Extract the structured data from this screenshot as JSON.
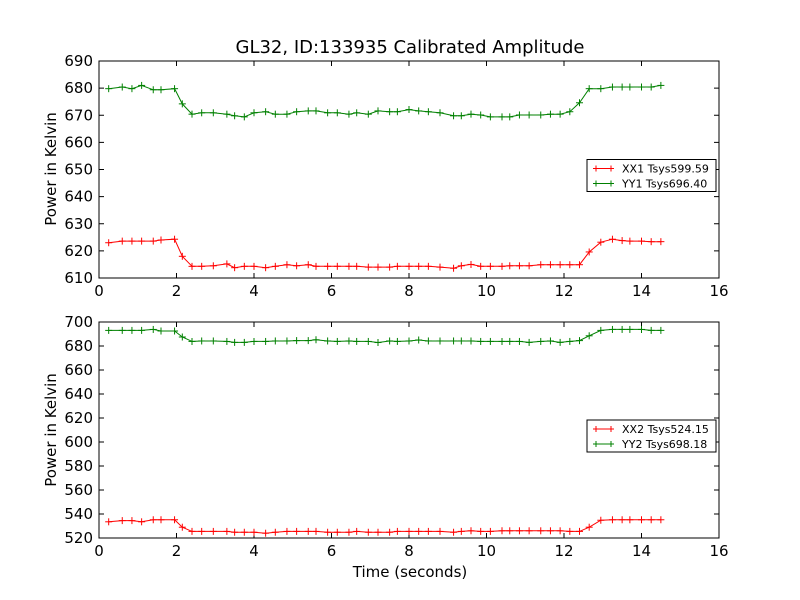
{
  "chart_data": {
    "title": "GL32, ID:133935 Calibrated Amplitude",
    "xlabel": "Time (seconds)",
    "panels": [
      {
        "type": "line",
        "ylabel": "Power in Kelvin",
        "xlim": [
          0,
          16
        ],
        "ylim": [
          610,
          690
        ],
        "xticks": [
          0,
          2,
          4,
          6,
          8,
          10,
          12,
          14,
          16
        ],
        "yticks": [
          610,
          620,
          630,
          640,
          650,
          660,
          670,
          680,
          690
        ],
        "legend_position": "center-right",
        "series": [
          {
            "name": "XX1 Tsys599.59",
            "color": "#ff0000",
            "marker": "plus",
            "x": [
              0.25,
              0.6,
              0.85,
              1.1,
              1.4,
              1.6,
              1.95,
              2.15,
              2.4,
              2.65,
              2.95,
              3.3,
              3.5,
              3.75,
              4.0,
              4.3,
              4.55,
              4.85,
              5.1,
              5.4,
              5.6,
              5.9,
              6.15,
              6.45,
              6.65,
              6.95,
              7.2,
              7.5,
              7.7,
              8.0,
              8.25,
              8.5,
              8.8,
              9.15,
              9.35,
              9.6,
              9.85,
              10.1,
              10.4,
              10.6,
              10.85,
              11.1,
              11.4,
              11.65,
              11.9,
              12.15,
              12.4,
              12.65,
              12.95,
              13.25,
              13.5,
              13.7,
              14.0,
              14.25,
              14.5
            ],
            "y": [
              623,
              623.6,
              623.6,
              623.6,
              623.6,
              624.0,
              624.3,
              618.0,
              614.3,
              614.3,
              614.5,
              615.2,
              613.8,
              614.3,
              614.3,
              613.8,
              614.3,
              614.9,
              614.5,
              614.9,
              614.3,
              614.3,
              614.3,
              614.3,
              614.3,
              614.0,
              614.0,
              614.0,
              614.3,
              614.3,
              614.3,
              614.3,
              614.0,
              613.6,
              614.5,
              615.0,
              614.3,
              614.3,
              614.3,
              614.5,
              614.5,
              614.5,
              614.9,
              614.9,
              614.9,
              614.9,
              614.9,
              619.6,
              623.2,
              624.3,
              623.8,
              623.6,
              623.6,
              623.4,
              623.4
            ]
          },
          {
            "name": "YY1 Tsys696.40",
            "color": "#008000",
            "marker": "plus",
            "x": [
              0.25,
              0.6,
              0.85,
              1.1,
              1.4,
              1.6,
              1.95,
              2.15,
              2.4,
              2.65,
              2.95,
              3.3,
              3.5,
              3.75,
              4.0,
              4.3,
              4.55,
              4.85,
              5.1,
              5.4,
              5.6,
              5.9,
              6.15,
              6.45,
              6.65,
              6.95,
              7.2,
              7.5,
              7.7,
              8.0,
              8.25,
              8.5,
              8.8,
              9.15,
              9.35,
              9.6,
              9.85,
              10.1,
              10.4,
              10.6,
              10.85,
              11.1,
              11.4,
              11.65,
              11.9,
              12.15,
              12.4,
              12.65,
              12.95,
              13.25,
              13.5,
              13.7,
              14.0,
              14.25,
              14.5
            ],
            "y": [
              679.8,
              680.4,
              679.8,
              681.0,
              679.4,
              679.4,
              679.8,
              674.2,
              670.4,
              670.9,
              670.9,
              670.4,
              669.8,
              669.4,
              670.9,
              671.3,
              670.4,
              670.4,
              671.3,
              671.6,
              671.6,
              670.9,
              670.9,
              670.4,
              670.9,
              670.4,
              671.6,
              671.3,
              671.3,
              672.1,
              671.6,
              671.3,
              670.9,
              669.8,
              669.8,
              670.4,
              670.1,
              669.4,
              669.4,
              669.4,
              670.1,
              670.1,
              670.1,
              670.4,
              670.4,
              671.3,
              674.6,
              679.8,
              679.8,
              680.4,
              680.4,
              680.4,
              680.4,
              680.4,
              681.0
            ]
          }
        ]
      },
      {
        "type": "line",
        "ylabel": "Power in Kelvin",
        "xlim": [
          0,
          16
        ],
        "ylim": [
          520,
          700
        ],
        "xticks": [
          0,
          2,
          4,
          6,
          8,
          10,
          12,
          14,
          16
        ],
        "yticks": [
          520,
          540,
          560,
          580,
          600,
          620,
          640,
          660,
          680,
          700
        ],
        "legend_position": "center-right",
        "series": [
          {
            "name": "XX2 Tsys524.15",
            "color": "#ff0000",
            "marker": "plus",
            "x": [
              0.25,
              0.6,
              0.85,
              1.1,
              1.4,
              1.6,
              1.95,
              2.15,
              2.4,
              2.65,
              2.95,
              3.3,
              3.5,
              3.75,
              4.0,
              4.3,
              4.55,
              4.85,
              5.1,
              5.4,
              5.6,
              5.9,
              6.15,
              6.45,
              6.65,
              6.95,
              7.2,
              7.5,
              7.7,
              8.0,
              8.25,
              8.5,
              8.8,
              9.15,
              9.35,
              9.6,
              9.85,
              10.1,
              10.4,
              10.6,
              10.85,
              11.1,
              11.4,
              11.65,
              11.9,
              12.15,
              12.4,
              12.65,
              12.95,
              13.25,
              13.5,
              13.7,
              14.0,
              14.25,
              14.5
            ],
            "y": [
              533.5,
              534.5,
              534.5,
              533.5,
              535.2,
              535.2,
              535.2,
              529.0,
              525.5,
              525.5,
              525.5,
              525.5,
              524.8,
              524.8,
              524.8,
              524.0,
              524.8,
              525.5,
              525.5,
              525.5,
              525.5,
              524.8,
              524.8,
              524.8,
              525.5,
              524.8,
              524.8,
              524.8,
              525.5,
              525.5,
              525.5,
              525.5,
              525.5,
              524.8,
              525.5,
              526.0,
              525.5,
              525.5,
              526.0,
              526.0,
              526.0,
              526.0,
              526.0,
              526.0,
              526.0,
              525.5,
              525.5,
              529.0,
              534.8,
              535.2,
              535.2,
              535.2,
              535.2,
              535.2,
              535.2
            ]
          },
          {
            "name": "YY2 Tsys698.18",
            "color": "#008000",
            "marker": "plus",
            "x": [
              0.25,
              0.6,
              0.85,
              1.1,
              1.4,
              1.6,
              1.95,
              2.15,
              2.4,
              2.65,
              2.95,
              3.3,
              3.5,
              3.75,
              4.0,
              4.3,
              4.55,
              4.85,
              5.1,
              5.4,
              5.6,
              5.9,
              6.15,
              6.45,
              6.65,
              6.95,
              7.2,
              7.5,
              7.7,
              8.0,
              8.25,
              8.5,
              8.8,
              9.15,
              9.35,
              9.6,
              9.85,
              10.1,
              10.4,
              10.6,
              10.85,
              11.1,
              11.4,
              11.65,
              11.9,
              12.15,
              12.4,
              12.65,
              12.95,
              13.25,
              13.5,
              13.7,
              14.0,
              14.25,
              14.5
            ],
            "y": [
              693.0,
              693.0,
              693.0,
              693.0,
              693.8,
              692.5,
              692.5,
              687.5,
              683.8,
              684.2,
              684.2,
              683.8,
              683.0,
              683.0,
              683.8,
              683.8,
              684.2,
              684.2,
              684.5,
              684.5,
              685.2,
              684.2,
              683.8,
              684.2,
              683.8,
              683.8,
              682.9,
              684.2,
              683.8,
              684.2,
              685.0,
              684.2,
              684.2,
              684.2,
              684.2,
              684.2,
              683.8,
              683.8,
              683.8,
              683.8,
              683.8,
              683.0,
              683.8,
              684.2,
              683.0,
              683.8,
              684.5,
              688.5,
              693.0,
              693.8,
              693.8,
              693.8,
              693.8,
              693.0,
              693.0
            ]
          }
        ]
      }
    ]
  }
}
